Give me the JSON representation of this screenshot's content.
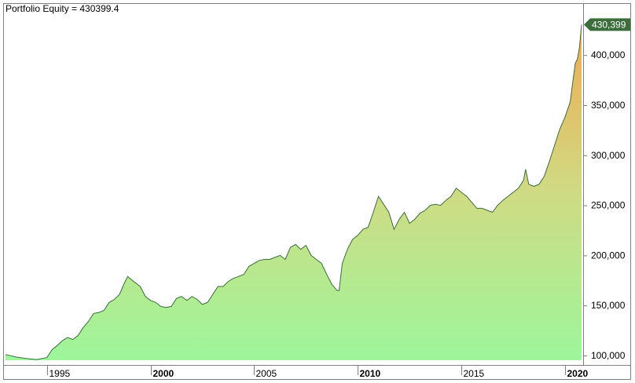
{
  "chart_data": {
    "type": "area",
    "title": "Portfolio Equity = 430399.4",
    "last_value_label": "430,399",
    "xlabel": "",
    "ylabel": "",
    "xlim": [
      1993.0,
      2020.8
    ],
    "ylim": [
      95000,
      445000
    ],
    "x_ticks": [
      {
        "value": 1995,
        "label": "1995",
        "bold": false
      },
      {
        "value": 2000,
        "label": "2000",
        "bold": true
      },
      {
        "value": 2005,
        "label": "2005",
        "bold": false
      },
      {
        "value": 2010,
        "label": "2010",
        "bold": true
      },
      {
        "value": 2015,
        "label": "2015",
        "bold": false
      },
      {
        "value": 2020,
        "label": "2020",
        "bold": true
      }
    ],
    "y_ticks": [
      {
        "value": 100000,
        "label": "100,000"
      },
      {
        "value": 150000,
        "label": "150,000"
      },
      {
        "value": 200000,
        "label": "200,000"
      },
      {
        "value": 250000,
        "label": "250,000"
      },
      {
        "value": 300000,
        "label": "300,000"
      },
      {
        "value": 350000,
        "label": "350,000"
      },
      {
        "value": 400000,
        "label": "400,000"
      }
    ],
    "grid": false,
    "colors": {
      "line": "#3c6e3c",
      "fill_low": "#9ff59a",
      "fill_mid": "#cfdb84",
      "fill_high": "#eeac52",
      "marker": "#3c6e3c",
      "axis": "#808080"
    },
    "x": [
      1993.0,
      1993.5,
      1994.0,
      1994.5,
      1995.0,
      1995.25,
      1995.5,
      1995.75,
      1996.0,
      1996.25,
      1996.5,
      1996.75,
      1997.0,
      1997.25,
      1997.5,
      1997.75,
      1998.0,
      1998.25,
      1998.5,
      1998.75,
      1998.9,
      1999.0,
      1999.25,
      1999.5,
      1999.75,
      2000.0,
      2000.25,
      2000.5,
      2000.75,
      2001.0,
      2001.25,
      2001.5,
      2001.75,
      2002.0,
      2002.25,
      2002.5,
      2002.75,
      2003.0,
      2003.25,
      2003.5,
      2003.75,
      2004.0,
      2004.25,
      2004.5,
      2004.75,
      2005.0,
      2005.25,
      2005.5,
      2005.75,
      2006.0,
      2006.25,
      2006.5,
      2006.75,
      2007.0,
      2007.25,
      2007.5,
      2007.75,
      2008.0,
      2008.25,
      2008.5,
      2008.75,
      2009.0,
      2009.1,
      2009.25,
      2009.5,
      2009.75,
      2010.0,
      2010.25,
      2010.5,
      2010.75,
      2011.0,
      2011.25,
      2011.5,
      2011.75,
      2012.0,
      2012.25,
      2012.5,
      2012.75,
      2013.0,
      2013.25,
      2013.5,
      2013.75,
      2014.0,
      2014.25,
      2014.5,
      2014.75,
      2015.0,
      2015.25,
      2015.5,
      2015.75,
      2016.0,
      2016.25,
      2016.5,
      2016.75,
      2017.0,
      2017.25,
      2017.5,
      2017.75,
      2018.0,
      2018.1,
      2018.25,
      2018.5,
      2018.75,
      2019.0,
      2019.25,
      2019.5,
      2019.75,
      2020.0,
      2020.25,
      2020.4,
      2020.5,
      2020.6,
      2020.7,
      2020.8
    ],
    "y": [
      101000,
      98500,
      97000,
      96000,
      98000,
      106000,
      110000,
      115000,
      118000,
      116000,
      120000,
      128000,
      134000,
      142000,
      143000,
      145000,
      153000,
      156000,
      161000,
      173000,
      179000,
      177000,
      173000,
      169000,
      159000,
      155000,
      153000,
      149000,
      148000,
      149000,
      157000,
      159000,
      155000,
      159000,
      156000,
      151000,
      153000,
      161000,
      169000,
      169000,
      174000,
      177000,
      179000,
      181000,
      189000,
      192000,
      195000,
      196000,
      196000,
      198000,
      200000,
      196000,
      208000,
      211000,
      206000,
      210000,
      200000,
      196000,
      192000,
      181000,
      171000,
      165000,
      165000,
      192000,
      206000,
      216000,
      220000,
      226000,
      228000,
      243000,
      259000,
      251000,
      243000,
      226000,
      236000,
      243000,
      232000,
      236000,
      242000,
      245000,
      250000,
      251000,
      250000,
      255000,
      259000,
      267000,
      263000,
      259000,
      253000,
      247000,
      247000,
      245000,
      243000,
      250000,
      255000,
      259000,
      263000,
      267000,
      275000,
      286000,
      271000,
      269000,
      271000,
      279000,
      294000,
      310000,
      326000,
      338000,
      353000,
      377000,
      392000,
      396000,
      408000,
      430399
    ]
  }
}
